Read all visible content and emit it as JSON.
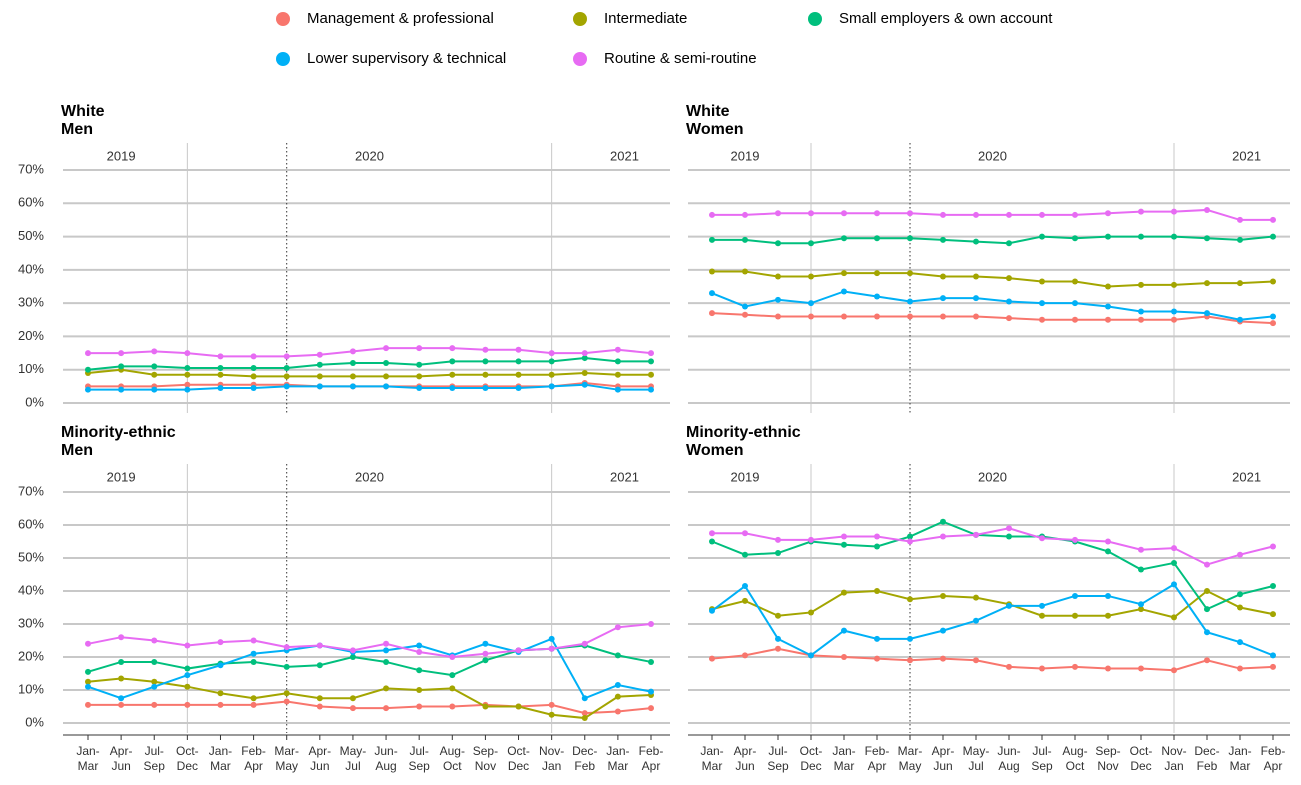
{
  "chart_data": {
    "type": "line",
    "categories": [
      "Jan-Mar",
      "Apr-Jun",
      "Jul-Sep",
      "Oct-Dec",
      "Jan-Mar",
      "Feb-Apr",
      "Mar-May",
      "Apr-Jun",
      "May-Jul",
      "Jun-Aug",
      "Jul-Sep",
      "Aug-Oct",
      "Sep-Nov",
      "Oct-Dec",
      "Nov-Jan",
      "Dec-Feb",
      "Jan-Mar",
      "Feb-Apr"
    ],
    "years": [
      "2019",
      "2020",
      "2021"
    ],
    "ylim": [
      0,
      70
    ],
    "yticks": [
      {
        "value": 0,
        "label": "0%"
      },
      {
        "value": 10,
        "label": "10%"
      },
      {
        "value": 20,
        "label": "20%"
      },
      {
        "value": 30,
        "label": "30%"
      },
      {
        "value": 40,
        "label": "40%"
      },
      {
        "value": 50,
        "label": "50%"
      },
      {
        "value": 60,
        "label": "60%"
      },
      {
        "value": 70,
        "label": "70%"
      }
    ],
    "grid": true,
    "series": [
      {
        "name": "Management & professional",
        "color": "#f8766d"
      },
      {
        "name": "Intermediate",
        "color": "#a3a500"
      },
      {
        "name": "Small employers & own account",
        "color": "#00bf7d"
      },
      {
        "name": "Lower supervisory & technical",
        "color": "#00b0f6"
      },
      {
        "name": "Routine & semi-routine",
        "color": "#e76bf3"
      }
    ],
    "panels": [
      {
        "group": "White",
        "sex": "Men",
        "values": [
          [
            5,
            5,
            5,
            5.5,
            5.5,
            5.5,
            5.5,
            5,
            5,
            5,
            5,
            5,
            5,
            5,
            5,
            6,
            5,
            5
          ],
          [
            9,
            10,
            8.5,
            8.5,
            8.5,
            8,
            8,
            8,
            8,
            8,
            8,
            8.5,
            8.5,
            8.5,
            8.5,
            9,
            8.5,
            8.5
          ],
          [
            10,
            11,
            11,
            10.5,
            10.5,
            10.5,
            10.5,
            11.5,
            12,
            12,
            11.5,
            12.5,
            12.5,
            12.5,
            12.5,
            13.5,
            12.5,
            12.5
          ],
          [
            4,
            4,
            4,
            4,
            4.5,
            4.5,
            5,
            5,
            5,
            5,
            4.5,
            4.5,
            4.5,
            4.5,
            5,
            5.5,
            4,
            4
          ],
          [
            15,
            15,
            15.5,
            15,
            14,
            14,
            14,
            14.5,
            15.5,
            16.5,
            16.5,
            16.5,
            16,
            16,
            15,
            15,
            16,
            15
          ]
        ]
      },
      {
        "group": "White",
        "sex": "Women",
        "values": [
          [
            27,
            26.5,
            26,
            26,
            26,
            26,
            26,
            26,
            26,
            25.5,
            25,
            25,
            25,
            25,
            25,
            26,
            24.5,
            24
          ],
          [
            39.5,
            39.5,
            38,
            38,
            39,
            39,
            39,
            38,
            38,
            37.5,
            36.5,
            36.5,
            35,
            35.5,
            35.5,
            36,
            36,
            36.5
          ],
          [
            49,
            49,
            48,
            48,
            49.5,
            49.5,
            49.5,
            49,
            48.5,
            48,
            50,
            49.5,
            50,
            50,
            50,
            49.5,
            49,
            50
          ],
          [
            33,
            29,
            31,
            30,
            33.5,
            32,
            30.5,
            31.5,
            31.5,
            30.5,
            30,
            30,
            29,
            27.5,
            27.5,
            27,
            25,
            26
          ],
          [
            56.5,
            56.5,
            57,
            57,
            57,
            57,
            57,
            56.5,
            56.5,
            56.5,
            56.5,
            56.5,
            57,
            57.5,
            57.5,
            58,
            55,
            55
          ]
        ]
      },
      {
        "group": "Minority-ethnic",
        "sex": "Men",
        "values": [
          [
            5.5,
            5.5,
            5.5,
            5.5,
            5.5,
            5.5,
            6.5,
            5,
            4.5,
            4.5,
            5,
            5,
            5.5,
            5,
            5.5,
            3,
            3.5,
            4.5
          ],
          [
            12.5,
            13.5,
            12.5,
            11,
            9,
            7.5,
            9,
            7.5,
            7.5,
            10.5,
            10,
            10.5,
            5,
            5,
            2.5,
            1.5,
            8,
            8.5
          ],
          [
            15.5,
            18.5,
            18.5,
            16.5,
            18,
            18.5,
            17,
            17.5,
            20,
            18.5,
            16,
            14.5,
            19,
            22,
            22.5,
            23.5,
            20.5,
            18.5
          ],
          [
            11,
            7.5,
            11,
            14.5,
            17.5,
            21,
            22,
            23.5,
            21.5,
            22,
            23.5,
            20.5,
            24,
            21.5,
            25.5,
            7.5,
            11.5,
            9.5
          ],
          [
            24,
            26,
            25,
            23.5,
            24.5,
            25,
            23,
            23.5,
            22,
            24,
            21.5,
            20,
            21,
            22,
            22.5,
            24,
            29,
            30
          ]
        ]
      },
      {
        "group": "Minority-ethnic",
        "sex": "Women",
        "values": [
          [
            19.5,
            20.5,
            22.5,
            20.5,
            20,
            19.5,
            19,
            19.5,
            19,
            17,
            16.5,
            17,
            16.5,
            16.5,
            16,
            19,
            16.5,
            17
          ],
          [
            34.5,
            37,
            32.5,
            33.5,
            39.5,
            40,
            37.5,
            38.5,
            38,
            36,
            32.5,
            32.5,
            32.5,
            34.5,
            32,
            40,
            35,
            33
          ],
          [
            55,
            51,
            51.5,
            55,
            54,
            53.5,
            56.5,
            61,
            57,
            56.5,
            56.5,
            55,
            52,
            46.5,
            48.5,
            34.5,
            39,
            41.5
          ],
          [
            34,
            41.5,
            25.5,
            20.5,
            28,
            25.5,
            25.5,
            28,
            31,
            35.5,
            35.5,
            38.5,
            38.5,
            36,
            42,
            27.5,
            24.5,
            20.5
          ],
          [
            57.5,
            57.5,
            55.5,
            55.5,
            56.5,
            56.5,
            55,
            56.5,
            57,
            59,
            56,
            55.5,
            55,
            52.5,
            53,
            48,
            51,
            53.5
          ]
        ]
      }
    ]
  }
}
